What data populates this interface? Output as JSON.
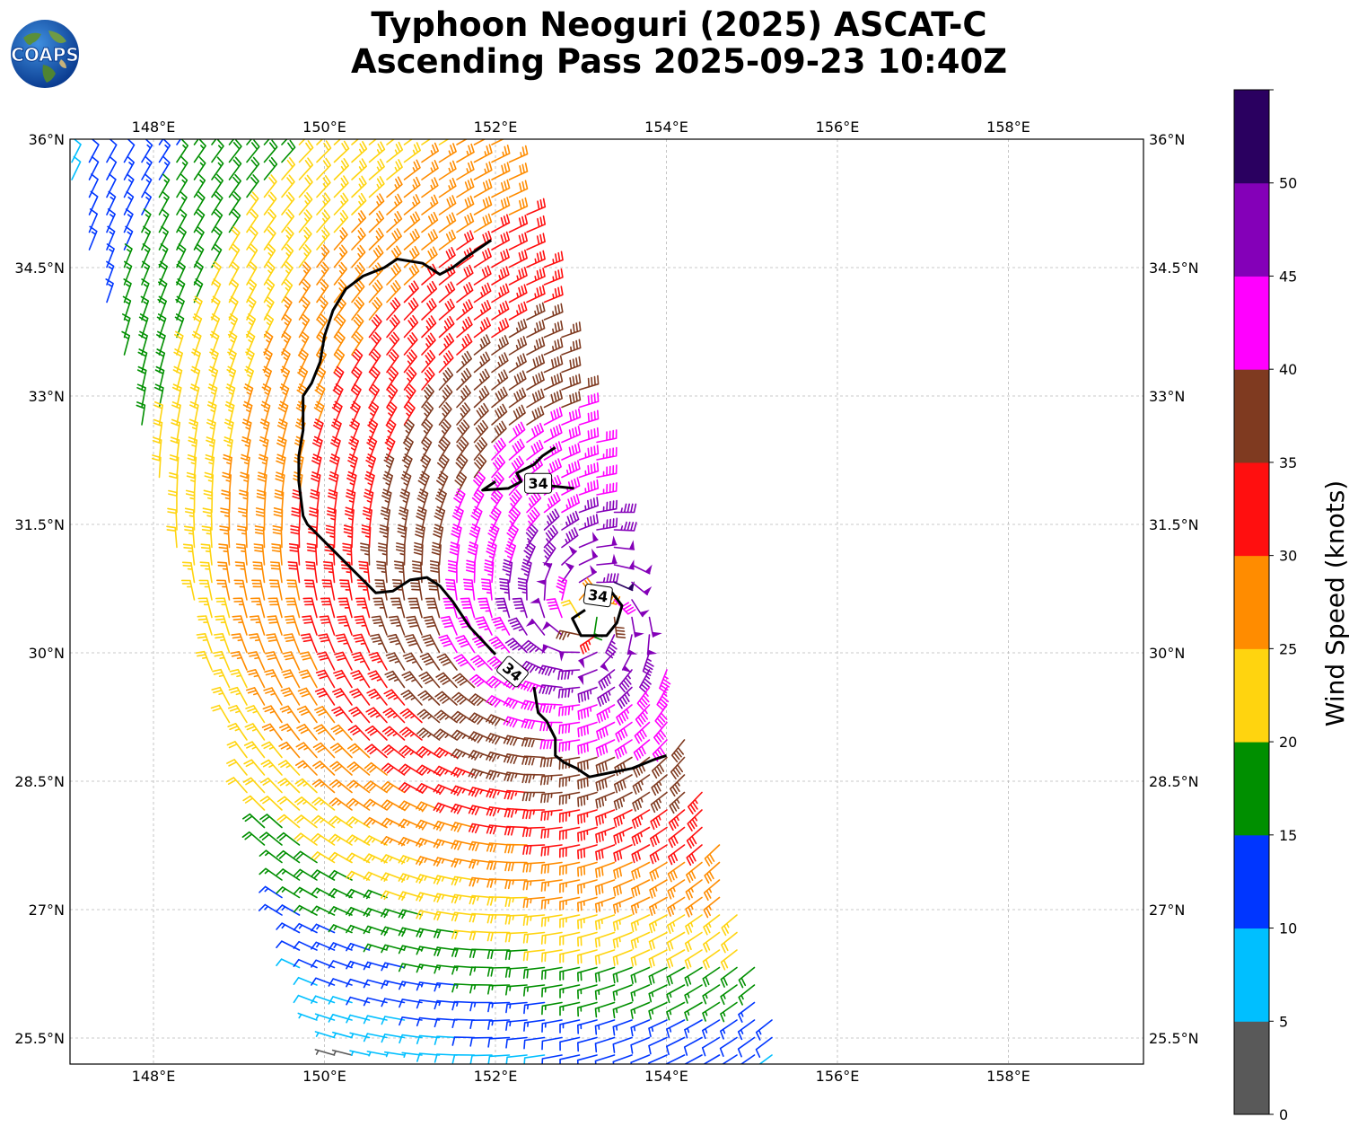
{
  "title": {
    "line1": "Typhoon Neoguri (2025) ASCAT-C",
    "line2": "Ascending Pass 2025-09-23 10:40Z"
  },
  "logo": {
    "text": "COAPS",
    "icon": "globe-logo-icon"
  },
  "map": {
    "lon_range": [
      147.0,
      159.5
    ],
    "lat_range": [
      25.2,
      36.0
    ],
    "lon_ticks": [
      "148°E",
      "150°E",
      "152°E",
      "154°E",
      "156°E",
      "158°E"
    ],
    "lon_tick_values": [
      148,
      150,
      152,
      154,
      156,
      158
    ],
    "lat_ticks": [
      "36°N",
      "34.5°N",
      "33°N",
      "31.5°N",
      "30°N",
      "28.5°N",
      "27°N",
      "25.5°N"
    ],
    "lat_tick_values": [
      36,
      34.5,
      33,
      31.5,
      30,
      28.5,
      27,
      25.5
    ],
    "gridlines": true,
    "storm_center": {
      "lon": 153.1,
      "lat": 30.45
    },
    "swath_corners": [
      [
        146.9,
        35.9
      ],
      [
        152.1,
        36.1
      ],
      [
        155.4,
        25.2
      ],
      [
        150.0,
        25.2
      ]
    ],
    "contour_label": "34",
    "contour_34kt": [
      [
        [
          151.95,
          34.82
        ],
        [
          151.7,
          34.65
        ],
        [
          151.5,
          34.5
        ],
        [
          151.35,
          34.42
        ],
        [
          151.15,
          34.55
        ],
        [
          150.85,
          34.6
        ],
        [
          150.7,
          34.5
        ],
        [
          150.45,
          34.4
        ],
        [
          150.25,
          34.25
        ],
        [
          150.1,
          34.0
        ],
        [
          150.0,
          33.7
        ],
        [
          149.95,
          33.4
        ],
        [
          149.85,
          33.15
        ],
        [
          149.75,
          33.0
        ],
        [
          149.75,
          32.6
        ],
        [
          149.7,
          32.3
        ],
        [
          149.7,
          32.0
        ],
        [
          149.75,
          31.6
        ],
        [
          149.8,
          31.5
        ],
        [
          150.0,
          31.3
        ],
        [
          150.2,
          31.1
        ],
        [
          150.4,
          30.9
        ],
        [
          150.6,
          30.7
        ],
        [
          150.8,
          30.72
        ],
        [
          151.0,
          30.85
        ],
        [
          151.2,
          30.88
        ],
        [
          151.35,
          30.78
        ],
        [
          151.5,
          30.6
        ],
        [
          151.7,
          30.3
        ],
        [
          152.0,
          29.98
        ]
      ],
      [
        [
          152.45,
          29.6
        ],
        [
          152.5,
          29.3
        ],
        [
          152.6,
          29.2
        ],
        [
          152.7,
          29.0
        ],
        [
          152.7,
          28.8
        ],
        [
          152.8,
          28.72
        ],
        [
          152.95,
          28.65
        ],
        [
          153.1,
          28.55
        ],
        [
          153.35,
          28.6
        ],
        [
          153.6,
          28.65
        ],
        [
          153.85,
          28.75
        ],
        [
          154.0,
          28.8
        ]
      ],
      [
        [
          152.0,
          32.0
        ],
        [
          151.85,
          31.9
        ],
        [
          152.15,
          31.92
        ],
        [
          152.3,
          32.0
        ],
        [
          152.25,
          32.1
        ],
        [
          152.45,
          32.2
        ],
        [
          152.55,
          32.3
        ],
        [
          152.7,
          32.4
        ]
      ],
      [
        [
          152.45,
          32.0
        ],
        [
          152.65,
          31.95
        ],
        [
          152.92,
          31.92
        ]
      ],
      [
        [
          153.05,
          30.5
        ],
        [
          152.9,
          30.4
        ],
        [
          153.0,
          30.2
        ],
        [
          153.3,
          30.2
        ],
        [
          153.42,
          30.35
        ],
        [
          153.48,
          30.55
        ],
        [
          153.35,
          30.72
        ]
      ]
    ],
    "contour_label_positions": [
      [
        152.5,
        31.98
      ],
      [
        153.2,
        30.67
      ],
      [
        152.2,
        29.78
      ]
    ]
  },
  "colorbar": {
    "title": "Wind Speed (knots)",
    "bounds": [
      0,
      5,
      10,
      15,
      20,
      25,
      30,
      35,
      40,
      45,
      50,
      55
    ],
    "tick_labels": [
      "0",
      "5",
      "10",
      "15",
      "20",
      "25",
      "30",
      "35",
      "40",
      "45",
      "50"
    ],
    "colors": [
      "#595959",
      "#00bfff",
      "#0036ff",
      "#008f00",
      "#ffd40f",
      "#ff8c00",
      "#ff0f0f",
      "#7f3a20",
      "#ff00ff",
      "#8400b8",
      "#2a0060"
    ]
  },
  "chart_data": {
    "type": "wind_barbs",
    "title": "Typhoon Neoguri (2025) ASCAT-C Ascending Pass 2025-09-23 10:40Z",
    "units": "knots",
    "storm_center": [
      153.1,
      30.45
    ],
    "field_model": "cyclonic vortex; speed highest near center (45-55 kt), decreasing outward to ~5 kt near the southwest edge of the swath",
    "samples": [
      {
        "lon": 153.1,
        "lat": 31.1,
        "speed": 52
      },
      {
        "lon": 153.6,
        "lat": 30.0,
        "speed": 48
      },
      {
        "lon": 153.3,
        "lat": 30.9,
        "speed": 43
      },
      {
        "lon": 151.7,
        "lat": 32.9,
        "speed": 42
      },
      {
        "lon": 152.5,
        "lat": 31.3,
        "speed": 38
      },
      {
        "lon": 151.8,
        "lat": 33.6,
        "speed": 37
      },
      {
        "lon": 150.8,
        "lat": 32.5,
        "speed": 36
      },
      {
        "lon": 150.0,
        "lat": 31.8,
        "speed": 32
      },
      {
        "lon": 151.0,
        "lat": 30.2,
        "speed": 27
      },
      {
        "lon": 148.5,
        "lat": 34.5,
        "speed": 27
      },
      {
        "lon": 148.7,
        "lat": 31.2,
        "speed": 22
      },
      {
        "lon": 150.6,
        "lat": 28.5,
        "speed": 23
      },
      {
        "lon": 149.6,
        "lat": 28.0,
        "speed": 17
      },
      {
        "lon": 152.8,
        "lat": 27.3,
        "speed": 13
      },
      {
        "lon": 150.5,
        "lat": 26.3,
        "speed": 11
      },
      {
        "lon": 150.2,
        "lat": 25.5,
        "speed": 7
      },
      {
        "lon": 154.5,
        "lat": 25.8,
        "speed": 17
      }
    ]
  }
}
